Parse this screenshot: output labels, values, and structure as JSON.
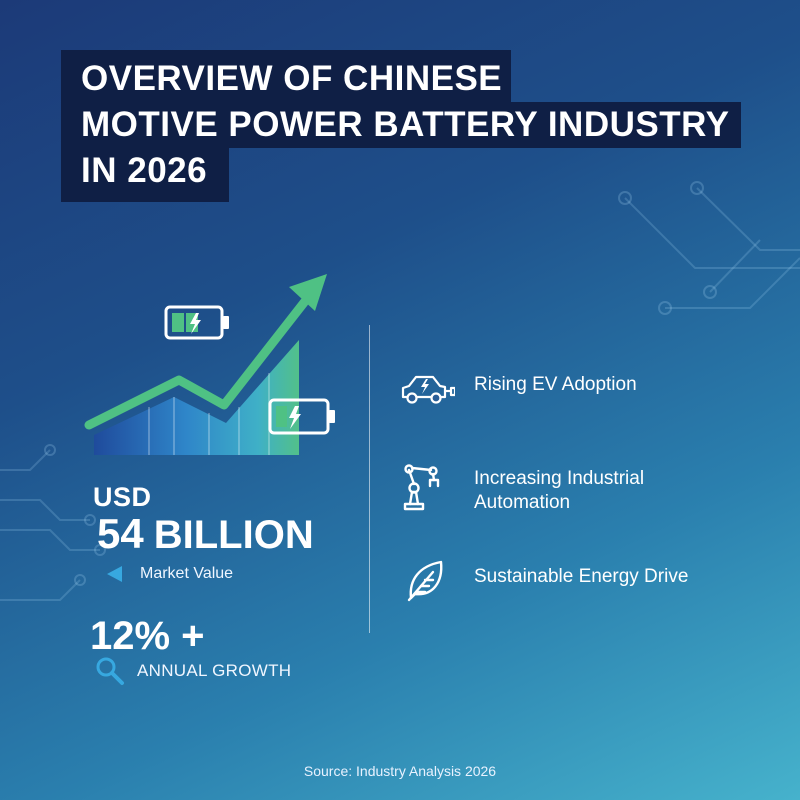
{
  "title": {
    "line1": "OVERVIEW OF CHINESE",
    "line2": "MOTIVE POWER BATTERY INDUSTRY",
    "line3": "IN 2026"
  },
  "stats": {
    "currency": "USD",
    "market_value_number": "54",
    "market_value_unit": "BILLION",
    "market_value_label": "Market Value",
    "growth_value": "12% +",
    "growth_label": "ANNUAL GROWTH"
  },
  "drivers": [
    {
      "label": "Rising EV Adoption",
      "icon": "electric-car-icon"
    },
    {
      "label": "Increasing Industrial\nAutomation",
      "icon": "robot-arm-icon"
    },
    {
      "label": "Sustainable Energy Drive",
      "icon": "leaf-icon"
    }
  ],
  "source": "Source: Industry Analysis 2026",
  "colors": {
    "title_bg": "#0f1f45",
    "arrow": "#4fc184",
    "bar_dark": "#1e4fa0",
    "bar_mid": "#2f7fcc",
    "bar_light": "#3fa8cf",
    "bar_green": "#4fbe8e"
  }
}
